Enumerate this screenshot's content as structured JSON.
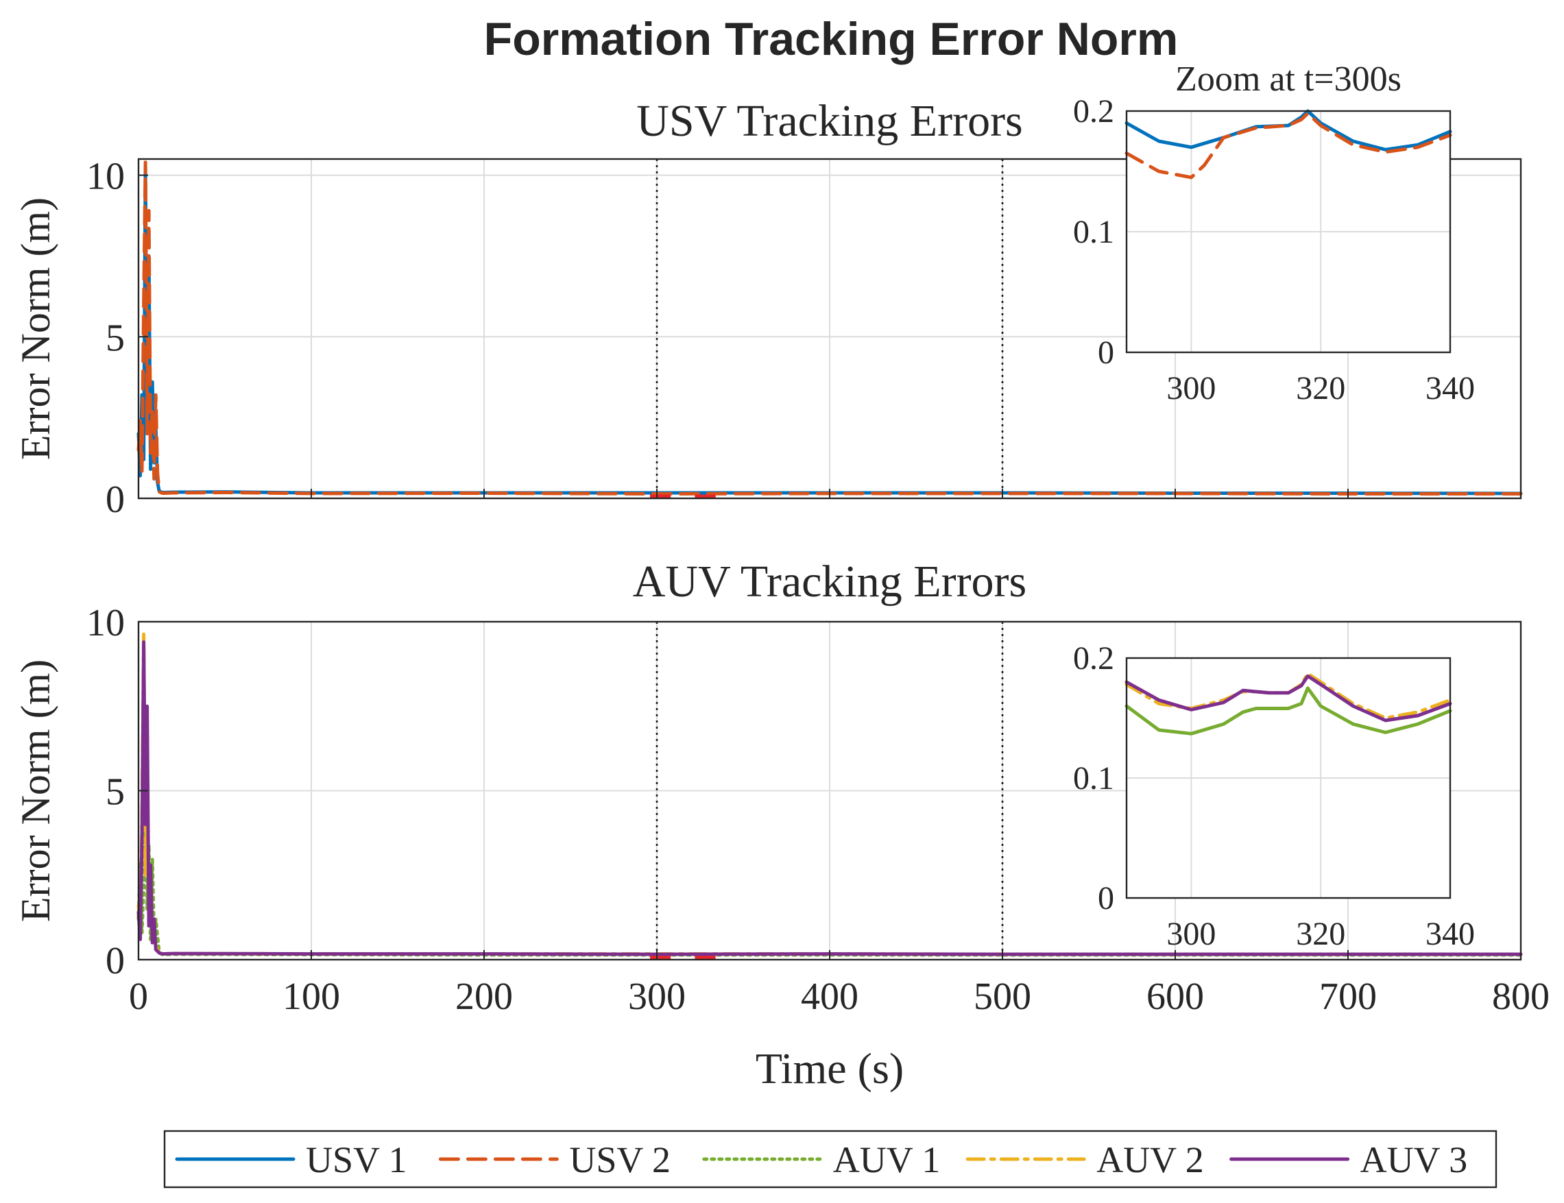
{
  "figure_title": "Formation Tracking Error Norm",
  "chart_data": [
    {
      "type": "line",
      "title": "USV Tracking Errors",
      "xlabel": "",
      "ylabel": "Error Norm (m)",
      "xlim": [
        0,
        800
      ],
      "ylim": [
        0,
        10.5
      ],
      "xticks": [
        0,
        100,
        200,
        300,
        400,
        500,
        600,
        700,
        800
      ],
      "yticks": [
        0,
        5,
        10
      ],
      "show_xtick_labels": false,
      "grid": true,
      "vlines": [
        300,
        500
      ],
      "series": [
        {
          "name": "USV 1",
          "color": "#0072BD",
          "dash": "solid",
          "x": [
            0,
            1,
            2,
            3,
            4,
            5,
            6,
            7,
            8,
            9,
            10,
            11,
            12,
            14,
            20,
            50,
            100,
            200,
            300,
            400,
            500,
            600,
            700,
            800
          ],
          "y": [
            2.0,
            0.7,
            3.2,
            1.2,
            10.2,
            2.6,
            7.5,
            0.9,
            3.6,
            1.1,
            2.2,
            0.5,
            0.22,
            0.18,
            0.19,
            0.2,
            0.17,
            0.17,
            0.17,
            0.17,
            0.17,
            0.16,
            0.16,
            0.15
          ]
        },
        {
          "name": "USV 2",
          "color": "#D95319",
          "dash": "dashed",
          "x": [
            0,
            1,
            2,
            3,
            4,
            5,
            6,
            7,
            8,
            9,
            10,
            11,
            12,
            14,
            20,
            50,
            100,
            200,
            300,
            400,
            500,
            600,
            700,
            800
          ],
          "y": [
            1.5,
            2.4,
            0.8,
            6.0,
            10.4,
            2.0,
            8.9,
            1.4,
            2.8,
            0.6,
            3.2,
            0.8,
            0.2,
            0.16,
            0.17,
            0.18,
            0.15,
            0.16,
            0.14,
            0.15,
            0.15,
            0.15,
            0.14,
            0.14
          ]
        }
      ],
      "inset": {
        "title": "Zoom at t=300s",
        "xlim": [
          290,
          340
        ],
        "ylim": [
          0,
          0.2
        ],
        "xticks": [
          300,
          320,
          340
        ],
        "yticks": [
          0,
          0.1,
          0.2
        ],
        "series": [
          {
            "name": "USV 1",
            "color": "#0072BD",
            "dash": "solid",
            "x": [
              290,
              295,
              300,
              305,
              310,
              315,
              317,
              318,
              320,
              325,
              330,
              335,
              340
            ],
            "y": [
              0.19,
              0.175,
              0.17,
              0.178,
              0.187,
              0.188,
              0.195,
              0.2,
              0.19,
              0.175,
              0.168,
              0.172,
              0.183
            ]
          },
          {
            "name": "USV 2",
            "color": "#D95319",
            "dash": "dashed",
            "x": [
              290,
              295,
              300,
              302,
              305,
              310,
              315,
              317,
              318,
              320,
              325,
              330,
              335,
              340
            ],
            "y": [
              0.165,
              0.15,
              0.145,
              0.155,
              0.178,
              0.186,
              0.188,
              0.193,
              0.198,
              0.188,
              0.172,
              0.166,
              0.17,
              0.18
            ]
          }
        ]
      }
    },
    {
      "type": "line",
      "title": "AUV Tracking Errors",
      "xlabel": "Time (s)",
      "ylabel": "Error Norm (m)",
      "xlim": [
        0,
        800
      ],
      "ylim": [
        0,
        10
      ],
      "xticks": [
        0,
        100,
        200,
        300,
        400,
        500,
        600,
        700,
        800
      ],
      "yticks": [
        0,
        5,
        10
      ],
      "show_xtick_labels": true,
      "grid": true,
      "vlines": [
        300,
        500
      ],
      "series": [
        {
          "name": "AUV 1",
          "color": "#77AC30",
          "dash": "dotted",
          "x": [
            0,
            1,
            2,
            3,
            4,
            5,
            6,
            7,
            8,
            9,
            10,
            12,
            14,
            20,
            100,
            200,
            300,
            400,
            500,
            600,
            700,
            800
          ],
          "y": [
            1.2,
            2.9,
            0.8,
            2.2,
            6.5,
            1.5,
            3.4,
            0.6,
            3.0,
            0.7,
            1.2,
            0.2,
            0.15,
            0.16,
            0.15,
            0.14,
            0.14,
            0.14,
            0.14,
            0.14,
            0.14,
            0.14
          ]
        },
        {
          "name": "AUV 2",
          "color": "#EDB120",
          "dash": "dashdot",
          "x": [
            0,
            1,
            2,
            3,
            4,
            5,
            6,
            7,
            8,
            9,
            10,
            12,
            14,
            20,
            100,
            200,
            300,
            400,
            500,
            600,
            700,
            800
          ],
          "y": [
            1.6,
            0.9,
            4.0,
            9.7,
            2.5,
            5.0,
            1.4,
            2.2,
            0.8,
            1.0,
            0.4,
            0.2,
            0.17,
            0.18,
            0.17,
            0.17,
            0.17,
            0.17,
            0.16,
            0.16,
            0.16,
            0.16
          ]
        },
        {
          "name": "AUV 3",
          "color": "#7E2F8E",
          "dash": "solid",
          "x": [
            0,
            1,
            2,
            3,
            4,
            5,
            6,
            7,
            8,
            9,
            10,
            12,
            14,
            20,
            100,
            200,
            300,
            400,
            500,
            600,
            700,
            800
          ],
          "y": [
            1.4,
            0.6,
            3.5,
            9.4,
            4.0,
            7.5,
            1.0,
            2.8,
            0.5,
            1.2,
            0.3,
            0.2,
            0.17,
            0.18,
            0.17,
            0.17,
            0.16,
            0.17,
            0.16,
            0.16,
            0.16,
            0.16
          ]
        }
      ],
      "inset": {
        "title": "",
        "xlim": [
          290,
          340
        ],
        "ylim": [
          0,
          0.2
        ],
        "xticks": [
          300,
          320,
          340
        ],
        "yticks": [
          0,
          0.1,
          0.2
        ],
        "series": [
          {
            "name": "AUV 1",
            "color": "#77AC30",
            "dash": "solid",
            "x": [
              290,
              295,
              300,
              305,
              308,
              310,
              312,
              315,
              317,
              318,
              320,
              325,
              330,
              335,
              340
            ],
            "y": [
              0.16,
              0.14,
              0.137,
              0.145,
              0.155,
              0.158,
              0.158,
              0.158,
              0.162,
              0.175,
              0.16,
              0.145,
              0.138,
              0.145,
              0.156
            ]
          },
          {
            "name": "AUV 2",
            "color": "#EDB120",
            "dash": "dashdot",
            "x": [
              290,
              295,
              300,
              305,
              308,
              310,
              312,
              315,
              317,
              318,
              320,
              325,
              330,
              335,
              340
            ],
            "y": [
              0.178,
              0.162,
              0.158,
              0.165,
              0.172,
              0.172,
              0.171,
              0.171,
              0.178,
              0.187,
              0.18,
              0.162,
              0.15,
              0.155,
              0.165
            ]
          },
          {
            "name": "AUV 3",
            "color": "#7E2F8E",
            "dash": "solid",
            "x": [
              290,
              295,
              300,
              305,
              308,
              310,
              312,
              315,
              317,
              318,
              320,
              325,
              330,
              335,
              340
            ],
            "y": [
              0.18,
              0.165,
              0.157,
              0.163,
              0.173,
              0.172,
              0.171,
              0.171,
              0.177,
              0.185,
              0.178,
              0.16,
              0.148,
              0.152,
              0.162
            ]
          }
        ]
      }
    }
  ],
  "legend": {
    "position": "bottom",
    "entries": [
      {
        "name": "USV 1",
        "color": "#0072BD",
        "dash": "solid"
      },
      {
        "name": "USV 2",
        "color": "#D95319",
        "dash": "dashed"
      },
      {
        "name": "AUV 1",
        "color": "#77AC30",
        "dash": "dotted"
      },
      {
        "name": "AUV 2",
        "color": "#EDB120",
        "dash": "dashdot"
      },
      {
        "name": "AUV 3",
        "color": "#7E2F8E",
        "dash": "solid"
      }
    ]
  }
}
